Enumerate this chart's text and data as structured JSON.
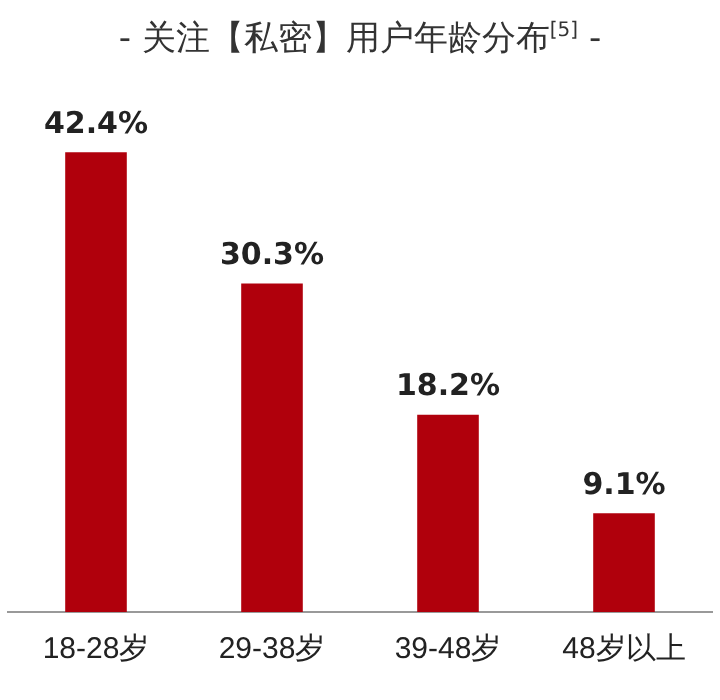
{
  "chart_data": {
    "type": "bar",
    "title": "- 关注【私密】用户年龄分布$^{[5]}$ -",
    "categories": [
      "18-28岁",
      "29-38岁",
      "39-48岁",
      "48岁以上"
    ],
    "values": [
      42.4,
      30.3,
      18.2,
      9.1
    ],
    "value_labels": [
      "42.4%",
      "30.3%",
      "18.2%",
      "9.1%"
    ],
    "color": "#b0000c",
    "grid": false,
    "legend": false,
    "tick_labels": "x"
  }
}
